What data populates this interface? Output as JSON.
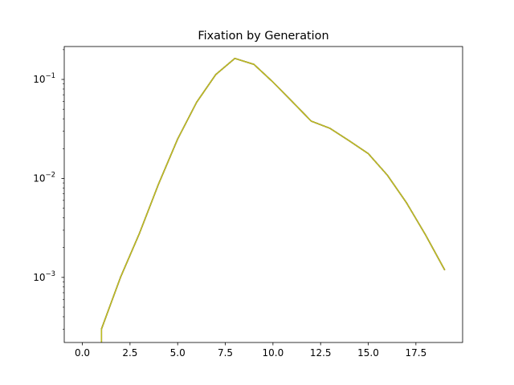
{
  "chart_data": {
    "type": "line",
    "title": "Fixation by Generation",
    "xlabel": "",
    "ylabel": "",
    "yscale": "log",
    "xlim": [
      -0.95,
      19.95
    ],
    "ylim": [
      0.00022,
      0.215
    ],
    "grid": false,
    "legend": "none",
    "x_ticks": [
      0,
      2.5,
      5,
      7.5,
      10,
      12.5,
      15,
      17.5
    ],
    "x_tick_labels": [
      "0.0",
      "2.5",
      "5.0",
      "7.5",
      "10.0",
      "12.5",
      "15.0",
      "17.5"
    ],
    "y_ticks": [
      0.001,
      0.01,
      0.1
    ],
    "y_tick_labels": [
      {
        "base": "10",
        "exp": "−3"
      },
      {
        "base": "10",
        "exp": "−2"
      },
      {
        "base": "10",
        "exp": "−1"
      }
    ],
    "series": [
      {
        "color": "#1f77b4",
        "x": [
          1,
          2,
          3,
          4,
          5,
          6,
          7,
          8,
          9,
          10,
          11,
          12,
          13,
          14,
          15,
          16,
          17,
          18,
          19
        ],
        "y": [
          0.0003,
          0.001,
          0.0028,
          0.0088,
          0.025,
          0.059,
          0.112,
          0.163,
          0.142,
          0.094,
          0.06,
          0.038,
          0.032,
          0.024,
          0.0178,
          0.0108,
          0.0057,
          0.0027,
          0.0012
        ]
      },
      {
        "color": "#ff7f0e",
        "x": [
          1,
          2,
          3,
          4,
          5,
          6,
          7,
          8,
          9,
          10,
          11,
          12,
          13,
          14,
          15,
          16,
          17,
          18,
          19
        ],
        "y": [
          0.0003,
          0.001,
          0.0028,
          0.0088,
          0.025,
          0.059,
          0.112,
          0.163,
          0.142,
          0.094,
          0.06,
          0.038,
          0.032,
          0.024,
          0.0178,
          0.0108,
          0.0057,
          0.0027,
          0.0012
        ]
      },
      {
        "color": "#2ca02c",
        "x": [
          1,
          2,
          3,
          4,
          5,
          6,
          7,
          8,
          9,
          10,
          11,
          12,
          13,
          14,
          15,
          16,
          17,
          18,
          19
        ],
        "y": [
          0.0003,
          0.001,
          0.0028,
          0.0088,
          0.025,
          0.059,
          0.112,
          0.163,
          0.142,
          0.094,
          0.06,
          0.038,
          0.032,
          0.024,
          0.0178,
          0.0108,
          0.0057,
          0.0027,
          0.0012
        ]
      },
      {
        "color": "#d62728",
        "x": [
          1,
          2,
          3,
          4,
          5,
          6,
          7,
          8,
          9,
          10,
          11,
          12,
          13,
          14,
          15,
          16,
          17,
          18,
          19
        ],
        "y": [
          0.0003,
          0.001,
          0.0028,
          0.0088,
          0.025,
          0.059,
          0.112,
          0.163,
          0.142,
          0.094,
          0.06,
          0.038,
          0.032,
          0.024,
          0.0178,
          0.0108,
          0.0057,
          0.0027,
          0.0012
        ]
      },
      {
        "color": "#8c564b",
        "x": [
          1,
          2,
          3,
          4,
          5,
          6,
          7,
          8,
          9,
          10,
          11,
          12,
          13,
          14,
          15,
          16,
          17,
          18,
          19
        ],
        "y": [
          0.0003,
          0.001,
          0.0028,
          0.0088,
          0.025,
          0.059,
          0.112,
          0.163,
          0.142,
          0.094,
          0.06,
          0.038,
          0.032,
          0.024,
          0.0178,
          0.0108,
          0.0057,
          0.0027,
          0.0012
        ]
      },
      {
        "color": "#7f7f7f",
        "x": [
          1,
          2,
          3,
          4,
          5,
          6,
          7,
          8,
          9,
          10,
          11,
          12,
          13,
          14,
          15,
          16,
          17,
          18,
          19
        ],
        "y": [
          0.0003,
          0.001,
          0.0028,
          0.0088,
          0.025,
          0.059,
          0.112,
          0.163,
          0.142,
          0.094,
          0.06,
          0.038,
          0.032,
          0.024,
          0.0178,
          0.0108,
          0.0057,
          0.0027,
          0.0012
        ]
      },
      {
        "color": "#bcbd22",
        "x": [
          1,
          2,
          3,
          4,
          5,
          6,
          7,
          8,
          9,
          10,
          11,
          12,
          13,
          14,
          15,
          16,
          17,
          18,
          19
        ],
        "y": [
          0.0003,
          0.001,
          0.0028,
          0.0088,
          0.025,
          0.059,
          0.112,
          0.163,
          0.142,
          0.094,
          0.06,
          0.038,
          0.032,
          0.024,
          0.0178,
          0.0108,
          0.0057,
          0.0027,
          0.0012
        ]
      }
    ]
  }
}
